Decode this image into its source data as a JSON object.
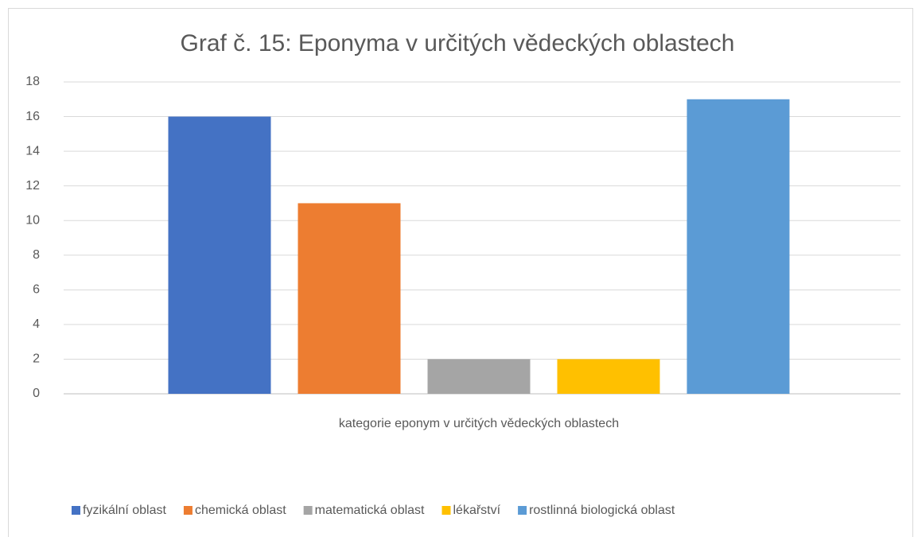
{
  "chart_data": {
    "type": "bar",
    "title": "Graf č. 15: Eponyma v určitých vědeckých oblastech",
    "categories": [
      "kategorie eponym v určitých vědeckých oblastech"
    ],
    "series": [
      {
        "name": "fyzikální oblast",
        "color": "#4472c4",
        "values": [
          16
        ]
      },
      {
        "name": "chemická oblast",
        "color": "#ed7d31",
        "values": [
          11
        ]
      },
      {
        "name": "matematická oblast",
        "color": "#a5a5a5",
        "values": [
          2
        ]
      },
      {
        "name": "lékařství",
        "color": "#ffc000",
        "values": [
          2
        ]
      },
      {
        "name": "rostlinná biologická oblast",
        "color": "#5b9bd5",
        "values": [
          17
        ]
      }
    ],
    "ylim": [
      0,
      18
    ],
    "yticks": [
      0,
      2,
      4,
      6,
      8,
      10,
      12,
      14,
      16,
      18
    ],
    "grid": true,
    "legend": "bottom"
  }
}
